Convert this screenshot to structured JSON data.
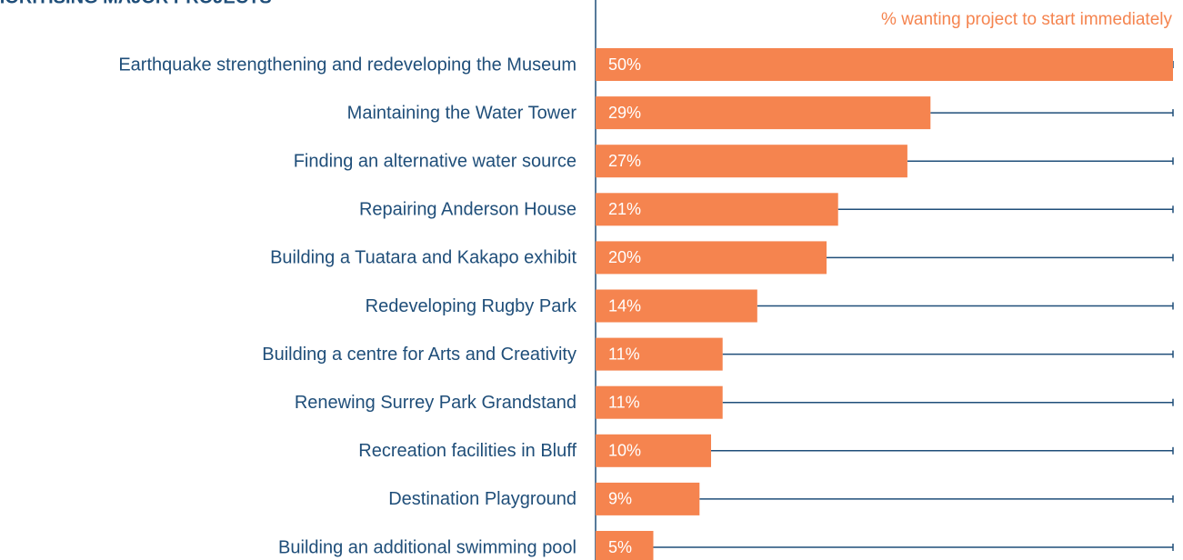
{
  "chart_data": {
    "type": "bar",
    "orientation": "horizontal",
    "title": "PRIORITISING MAJOR PROJECTS",
    "subtitle": "% wanting project to start immediately",
    "categories": [
      "Earthquake strengthening and redeveloping the Museum",
      "Maintaining the Water Tower",
      "Finding an alternative water source",
      "Repairing Anderson House",
      "Building a Tuatara and Kakapo exhibit",
      "Redeveloping Rugby Park",
      "Building a centre for Arts and Creativity",
      "Renewing Surrey Park Grandstand",
      "Recreation facilities in Bluff",
      "Destination Playground",
      "Building an additional swimming pool"
    ],
    "values": [
      50,
      29,
      27,
      21,
      20,
      14,
      11,
      11,
      10,
      9,
      5
    ],
    "value_labels": [
      "50%",
      "29%",
      "27%",
      "21%",
      "20%",
      "14%",
      "11%",
      "11%",
      "10%",
      "9%",
      "5%"
    ],
    "color": "#f5844f",
    "xlim": [
      0,
      50
    ]
  }
}
